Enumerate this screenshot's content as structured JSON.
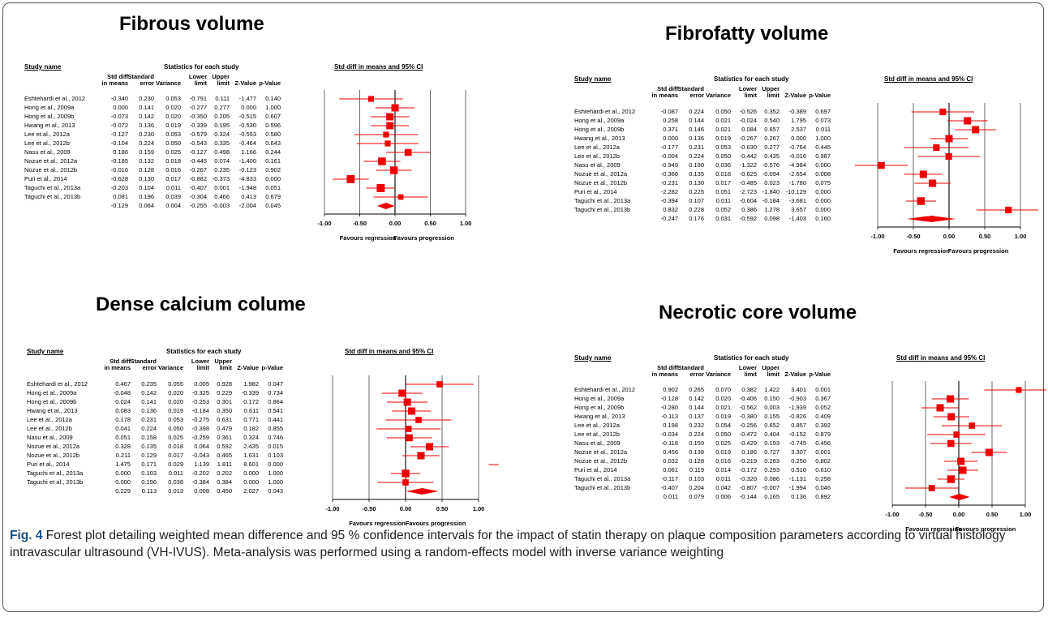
{
  "columns": [
    "Std diff\nin means",
    "Standard\nerror",
    "Variance",
    "Lower\nlimit",
    "Upper\nlimit",
    "Z-Value",
    "p-Value"
  ],
  "headers": {
    "study": "Study name",
    "stats": "Statistics for each study",
    "plot": "Std diff in means and 95% CI"
  },
  "axis": {
    "ticks": [
      "-1.00",
      "-0.50",
      "0.00",
      "0.50",
      "1.00"
    ],
    "tick_values": [
      -1,
      -0.5,
      0,
      0.5,
      1
    ],
    "left_label": "Favours regression",
    "right_label": "Favours progression"
  },
  "caption": {
    "label": "Fig. 4",
    "text": " Forest plot detailing weighted mean difference and 95 % confidence intervals for the impact of statin therapy on plaque composition parameters according to virtual histology intravascular ultrasound (VH-IVUS). Meta-analysis was performed using a random-effects model with inverse variance weighting"
  },
  "colors": {
    "marker": "#ee0000",
    "line": "#ee0000",
    "axis": "#000000",
    "grid": "#444444"
  },
  "chart_data": [
    {
      "type": "forest",
      "title": "Fibrous volume",
      "xlim": [
        -1,
        1
      ],
      "rows": [
        {
          "study": "Eshtehardi et al., 2012",
          "vals": [
            "-0.340",
            "0.230",
            "0.053",
            "-0.791",
            "0.111",
            "-1.477",
            "0.140"
          ],
          "est": -0.34,
          "lo": -0.791,
          "hi": 0.111,
          "size": 0.8
        },
        {
          "study": "Hong et al., 2009a",
          "vals": [
            "0.000",
            "0.141",
            "0.020",
            "-0.277",
            "0.277",
            "0.000",
            "1.000"
          ],
          "est": 0.0,
          "lo": -0.277,
          "hi": 0.277,
          "size": 1.0
        },
        {
          "study": "Hong et al., 2009b",
          "vals": [
            "-0.073",
            "0.142",
            "0.020",
            "-0.350",
            "0.205",
            "-0.515",
            "0.607"
          ],
          "est": -0.073,
          "lo": -0.35,
          "hi": 0.205,
          "size": 1.0
        },
        {
          "study": "Hwang et al., 2013",
          "vals": [
            "-0.072",
            "0.136",
            "0.019",
            "-0.339",
            "0.195",
            "-0.530",
            "0.596"
          ],
          "est": -0.072,
          "lo": -0.339,
          "hi": 0.195,
          "size": 1.0
        },
        {
          "study": "Lee et al., 2012a",
          "vals": [
            "-0.127",
            "0.230",
            "0.053",
            "-0.579",
            "0.324",
            "-0.553",
            "0.580"
          ],
          "est": -0.127,
          "lo": -0.579,
          "hi": 0.324,
          "size": 0.8
        },
        {
          "study": "Lee et al., 2012b",
          "vals": [
            "-0.104",
            "0.224",
            "0.050",
            "-0.543",
            "0.335",
            "-0.464",
            "0.643"
          ],
          "est": -0.104,
          "lo": -0.543,
          "hi": 0.335,
          "size": 0.8
        },
        {
          "study": "Nasu et al., 2009",
          "vals": [
            "0.186",
            "0.159",
            "0.025",
            "-0.127",
            "0.498",
            "1.166",
            "0.244"
          ],
          "est": 0.186,
          "lo": -0.127,
          "hi": 0.498,
          "size": 0.95
        },
        {
          "study": "Nozue et al., 2012a",
          "vals": [
            "-0.185",
            "0.132",
            "0.018",
            "-0.445",
            "0.074",
            "-1.400",
            "0.161"
          ],
          "est": -0.185,
          "lo": -0.445,
          "hi": 0.074,
          "size": 1.05
        },
        {
          "study": "Nozue et al., 2012b",
          "vals": [
            "-0.016",
            "0.128",
            "0.016",
            "-0.267",
            "0.235",
            "-0.123",
            "0.902"
          ],
          "est": -0.016,
          "lo": -0.267,
          "hi": 0.235,
          "size": 1.05
        },
        {
          "study": "Puri et al., 2014",
          "vals": [
            "-0.628",
            "0.130",
            "0.017",
            "-0.882",
            "-0.373",
            "-4.833",
            "0.000"
          ],
          "est": -0.628,
          "lo": -0.882,
          "hi": -0.373,
          "size": 1.1
        },
        {
          "study": "Taguchi et al., 2013a",
          "vals": [
            "-0.203",
            "0.104",
            "0.011",
            "-0.407",
            "0.001",
            "-1.948",
            "0.051"
          ],
          "est": -0.203,
          "lo": -0.407,
          "hi": 0.001,
          "size": 1.1
        },
        {
          "study": "Taguchi et al., 2013b",
          "vals": [
            "0.081",
            "0.196",
            "0.039",
            "-0.304",
            "0.466",
            "0.413",
            "0.679"
          ],
          "est": 0.081,
          "lo": -0.304,
          "hi": 0.466,
          "size": 0.75
        }
      ],
      "summary": {
        "vals": [
          "-0.129",
          "0.064",
          "0.004",
          "-0.255",
          "-0.003",
          "-2.004",
          "0.045"
        ],
        "est": -0.129,
        "lo": -0.255,
        "hi": -0.003
      }
    },
    {
      "type": "forest",
      "title": "Fibrofatty volume",
      "xlim": [
        -1,
        1
      ],
      "rows": [
        {
          "study": "Eshtehardi et al., 2012",
          "vals": [
            "-0.087",
            "0.224",
            "0.050",
            "-0.526",
            "0.352",
            "-0.389",
            "0.697"
          ],
          "est": -0.087,
          "lo": -0.526,
          "hi": 0.352,
          "size": 0.9
        },
        {
          "study": "Hong et al., 2009a",
          "vals": [
            "0.258",
            "0.144",
            "0.021",
            "-0.024",
            "0.540",
            "1.795",
            "0.073"
          ],
          "est": 0.258,
          "lo": -0.024,
          "hi": 0.54,
          "size": 1.0
        },
        {
          "study": "Hong et al., 2009b",
          "vals": [
            "0.371",
            "0.146",
            "0.021",
            "0.084",
            "0.657",
            "2.537",
            "0.011"
          ],
          "est": 0.371,
          "lo": 0.084,
          "hi": 0.657,
          "size": 1.0
        },
        {
          "study": "Hwang et al., 2013",
          "vals": [
            "0.000",
            "0.136",
            "0.019",
            "-0.267",
            "0.267",
            "0.000",
            "1.000"
          ],
          "est": 0.0,
          "lo": -0.267,
          "hi": 0.267,
          "size": 1.0
        },
        {
          "study": "Lee et al., 2012a",
          "vals": [
            "-0.177",
            "0.231",
            "0.053",
            "-0.630",
            "0.277",
            "-0.764",
            "0.445"
          ],
          "est": -0.177,
          "lo": -0.63,
          "hi": 0.277,
          "size": 0.9
        },
        {
          "study": "Lee et al., 2012b",
          "vals": [
            "-0.004",
            "0.224",
            "0.050",
            "-0.442",
            "0.435",
            "-0.016",
            "0.987"
          ],
          "est": -0.004,
          "lo": -0.442,
          "hi": 0.435,
          "size": 0.9
        },
        {
          "study": "Nasu et al., 2009",
          "vals": [
            "-0.949",
            "0.190",
            "0.036",
            "-1.322",
            "-0.576",
            "-4.984",
            "0.000"
          ],
          "est": -0.949,
          "lo": -1.322,
          "hi": -0.576,
          "size": 0.95
        },
        {
          "study": "Nozue et al., 2012a",
          "vals": [
            "-0.360",
            "0.135",
            "0.018",
            "-0.625",
            "-0.094",
            "-2.654",
            "0.008"
          ],
          "est": -0.36,
          "lo": -0.625,
          "hi": -0.094,
          "size": 1.0
        },
        {
          "study": "Nozue et al., 2012b",
          "vals": [
            "-0.231",
            "0.130",
            "0.017",
            "-0.485",
            "0.023",
            "-1.780",
            "0.075"
          ],
          "est": -0.231,
          "lo": -0.485,
          "hi": 0.023,
          "size": 1.0
        },
        {
          "study": "Puri et al., 2014",
          "vals": [
            "-2.282",
            "0.225",
            "0.051",
            "-2.723",
            "-1.840",
            "-10.129",
            "0.000"
          ],
          "est": -2.282,
          "lo": -2.723,
          "hi": -1.84,
          "size": 0.9
        },
        {
          "study": "Taguchi et al., 2013a",
          "vals": [
            "-0.394",
            "0.107",
            "0.011",
            "-0.604",
            "-0.184",
            "-3.681",
            "0.000"
          ],
          "est": -0.394,
          "lo": -0.604,
          "hi": -0.184,
          "size": 1.05
        },
        {
          "study": "Taguchi et al., 2013b",
          "vals": [
            "0.832",
            "0.228",
            "0.052",
            "0.386",
            "1.278",
            "3.657",
            "0.000"
          ],
          "est": 0.832,
          "lo": 0.386,
          "hi": 1.278,
          "size": 0.9
        }
      ],
      "summary": {
        "vals": [
          "-0.247",
          "0.176",
          "0.031",
          "-0.592",
          "0.098",
          "-1.403",
          "0.160"
        ],
        "est": -0.247,
        "lo": -0.592,
        "hi": 0.098
      }
    },
    {
      "type": "forest",
      "title": "Dense calcium colume",
      "xlim": [
        -1,
        1
      ],
      "rows": [
        {
          "study": "Eshtehardi et al., 2012",
          "vals": [
            "0.467",
            "0.235",
            "0.055",
            "0.005",
            "0.928",
            "1.982",
            "0.047"
          ],
          "est": 0.467,
          "lo": 0.005,
          "hi": 0.928,
          "size": 0.85
        },
        {
          "study": "Hong et al., 2009a",
          "vals": [
            "-0.048",
            "0.142",
            "0.020",
            "-0.325",
            "0.229",
            "-0.339",
            "0.734"
          ],
          "est": -0.048,
          "lo": -0.325,
          "hi": 0.229,
          "size": 1.0
        },
        {
          "study": "Hong et al., 2009b",
          "vals": [
            "0.024",
            "0.141",
            "0.020",
            "-0.253",
            "0.301",
            "0.172",
            "0.864"
          ],
          "est": 0.024,
          "lo": -0.253,
          "hi": 0.301,
          "size": 1.0
        },
        {
          "study": "Hwang et al., 2013",
          "vals": [
            "0.083",
            "0.136",
            "0.019",
            "-0.184",
            "0.350",
            "0.611",
            "0.541"
          ],
          "est": 0.083,
          "lo": -0.184,
          "hi": 0.35,
          "size": 1.0
        },
        {
          "study": "Lee et al., 2012a",
          "vals": [
            "0.178",
            "0.231",
            "0.053",
            "-0.275",
            "0.631",
            "0.771",
            "0.441"
          ],
          "est": 0.178,
          "lo": -0.275,
          "hi": 0.631,
          "size": 0.85
        },
        {
          "study": "Lee et al., 2012b",
          "vals": [
            "0.041",
            "0.224",
            "0.050",
            "-0.398",
            "0.479",
            "0.182",
            "0.855"
          ],
          "est": 0.041,
          "lo": -0.398,
          "hi": 0.479,
          "size": 0.85
        },
        {
          "study": "Nasu et al., 2009",
          "vals": [
            "0.051",
            "0.158",
            "0.025",
            "-0.259",
            "0.361",
            "0.324",
            "0.746"
          ],
          "est": 0.051,
          "lo": -0.259,
          "hi": 0.361,
          "size": 0.95
        },
        {
          "study": "Nozue et al., 2012a",
          "vals": [
            "0.328",
            "0.135",
            "0.018",
            "0.064",
            "0.592",
            "2.435",
            "0.015"
          ],
          "est": 0.328,
          "lo": 0.064,
          "hi": 0.592,
          "size": 1.0
        },
        {
          "study": "Nozue et al., 2012b",
          "vals": [
            "0.211",
            "0.129",
            "0.017",
            "-0.043",
            "0.465",
            "1.631",
            "0.103"
          ],
          "est": 0.211,
          "lo": -0.043,
          "hi": 0.465,
          "size": 1.0
        },
        {
          "study": "Puri et al., 2014",
          "vals": [
            "1.475",
            "0.171",
            "0.029",
            "1.139",
            "1.811",
            "8.601",
            "0.000"
          ],
          "est": 1.475,
          "lo": 1.139,
          "hi": 1.811,
          "size": 0.9
        },
        {
          "study": "Taguchi et al., 2013a",
          "vals": [
            "0.000",
            "0.103",
            "0.011",
            "-0.202",
            "0.202",
            "0.000",
            "1.000"
          ],
          "est": 0.0,
          "lo": -0.202,
          "hi": 0.202,
          "size": 1.05
        },
        {
          "study": "Taguchi et al., 2013b",
          "vals": [
            "0.000",
            "0.196",
            "0.038",
            "-0.384",
            "0.384",
            "0.000",
            "1.000"
          ],
          "est": 0.0,
          "lo": -0.384,
          "hi": 0.384,
          "size": 0.85
        }
      ],
      "summary": {
        "vals": [
          "0.229",
          "0.113",
          "0.013",
          "0.008",
          "0.450",
          "2.027",
          "0.043"
        ],
        "est": 0.229,
        "lo": 0.008,
        "hi": 0.45
      }
    },
    {
      "type": "forest",
      "title": "Necrotic core volume",
      "xlim": [
        -1,
        1
      ],
      "rows": [
        {
          "study": "Eshtehardi et al., 2012",
          "vals": [
            "0.902",
            "0.265",
            "0.070",
            "0.382",
            "1.422",
            "3.401",
            "0.001"
          ],
          "est": 0.902,
          "lo": 0.382,
          "hi": 1.422,
          "size": 0.8
        },
        {
          "study": "Hong et al., 2009a",
          "vals": [
            "-0.128",
            "0.142",
            "0.020",
            "-0.406",
            "0.150",
            "-0.903",
            "0.367"
          ],
          "est": -0.128,
          "lo": -0.406,
          "hi": 0.15,
          "size": 1.0
        },
        {
          "study": "Hong et al., 2009b",
          "vals": [
            "-0.280",
            "0.144",
            "0.021",
            "-0.562",
            "0.003",
            "-1.939",
            "0.052"
          ],
          "est": -0.28,
          "lo": -0.562,
          "hi": 0.003,
          "size": 1.0
        },
        {
          "study": "Hwang et al., 2013",
          "vals": [
            "-0.113",
            "0.137",
            "0.019",
            "-0.380",
            "0.155",
            "-0.826",
            "0.409"
          ],
          "est": -0.113,
          "lo": -0.38,
          "hi": 0.155,
          "size": 1.0
        },
        {
          "study": "Lee et al., 2012a",
          "vals": [
            "0.198",
            "0.232",
            "0.054",
            "-0.256",
            "0.652",
            "0.857",
            "0.392"
          ],
          "est": 0.198,
          "lo": -0.256,
          "hi": 0.652,
          "size": 0.85
        },
        {
          "study": "Lee et al., 2012b",
          "vals": [
            "-0.034",
            "0.224",
            "0.050",
            "-0.472",
            "0.404",
            "-0.152",
            "0.879"
          ],
          "est": -0.034,
          "lo": -0.472,
          "hi": 0.404,
          "size": 0.85
        },
        {
          "study": "Nasu et al., 2009",
          "vals": [
            "-0.118",
            "0.159",
            "0.025",
            "-0.429",
            "0.193",
            "-0.745",
            "0.456"
          ],
          "est": -0.118,
          "lo": -0.429,
          "hi": 0.193,
          "size": 0.95
        },
        {
          "study": "Nozue et al., 2012a",
          "vals": [
            "0.456",
            "0.138",
            "0.019",
            "0.186",
            "0.727",
            "3.307",
            "0.001"
          ],
          "est": 0.456,
          "lo": 0.186,
          "hi": 0.727,
          "size": 1.0
        },
        {
          "study": "Nozue et al., 2012b",
          "vals": [
            "0.032",
            "0.128",
            "0.016",
            "-0.219",
            "0.283",
            "0.250",
            "0.802"
          ],
          "est": 0.032,
          "lo": -0.219,
          "hi": 0.283,
          "size": 1.0
        },
        {
          "study": "Puri et al., 2014",
          "vals": [
            "0.061",
            "0.119",
            "0.014",
            "-0.172",
            "0.293",
            "0.510",
            "0.610"
          ],
          "est": 0.061,
          "lo": -0.172,
          "hi": 0.293,
          "size": 1.0
        },
        {
          "study": "Taguchi et al., 2013a",
          "vals": [
            "-0.117",
            "0.103",
            "0.011",
            "-0.320",
            "0.086",
            "-1.131",
            "0.258"
          ],
          "est": -0.117,
          "lo": -0.32,
          "hi": 0.086,
          "size": 1.05
        },
        {
          "study": "Taguchi et al., 2013b",
          "vals": [
            "-0.407",
            "0.204",
            "0.042",
            "-0.807",
            "-0.007",
            "-1.994",
            "0.046"
          ],
          "est": -0.407,
          "lo": -0.807,
          "hi": -0.007,
          "size": 0.85
        }
      ],
      "summary": {
        "vals": [
          "0.011",
          "0.079",
          "0.006",
          "-0.144",
          "0.165",
          "0.136",
          "0.892"
        ],
        "est": 0.011,
        "lo": -0.144,
        "hi": 0.165
      }
    }
  ]
}
